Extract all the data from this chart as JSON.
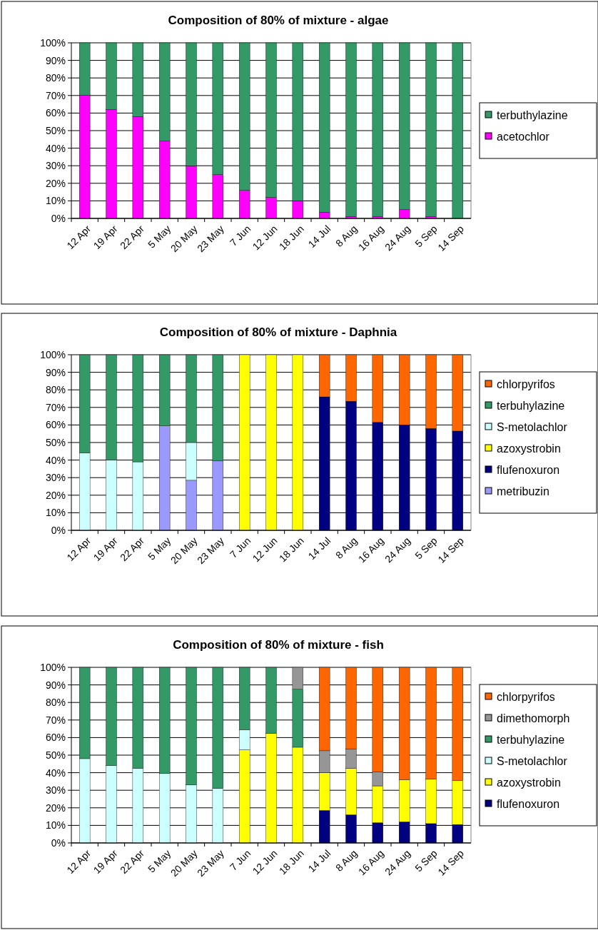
{
  "chart_data": [
    {
      "type": "bar",
      "stacked": true,
      "title": "Composition of 80% of mixture - algae",
      "categories": [
        "12 Apr",
        "19 Apr",
        "22 Apr",
        "5 May",
        "20 May",
        "23 May",
        "7 Jun",
        "12 Jun",
        "18 Jun",
        "14 Jul",
        "8 Aug",
        "16 Aug",
        "24 Aug",
        "5 Sep",
        "14 Sep"
      ],
      "ylim": [
        0,
        100
      ],
      "yticks": [
        {
          "value": 0,
          "label": "0%"
        },
        {
          "value": 10,
          "label": "10%"
        },
        {
          "value": 20,
          "label": "20%"
        },
        {
          "value": 30,
          "label": "30%"
        },
        {
          "value": 40,
          "label": "40%"
        },
        {
          "value": 50,
          "label": "50%"
        },
        {
          "value": 60,
          "label": "60%"
        },
        {
          "value": 70,
          "label": "70%"
        },
        {
          "value": 80,
          "label": "80%"
        },
        {
          "value": 90,
          "label": "90%"
        },
        {
          "value": 100,
          "label": "100%"
        }
      ],
      "grid": "y",
      "legend": "right",
      "series": [
        {
          "name": "acetochlor",
          "color": "#ff00ff",
          "values": [
            70,
            62,
            58,
            44,
            30,
            25,
            16,
            12,
            10,
            3.5,
            1,
            1,
            5,
            1,
            null
          ]
        },
        {
          "name": "terbuthylazine",
          "color": "#339966",
          "values": [
            30,
            38,
            42,
            56,
            70,
            75,
            84,
            88,
            90,
            96.5,
            99,
            99,
            95,
            99,
            100
          ]
        }
      ]
    },
    {
      "type": "bar",
      "stacked": true,
      "title": "Composition of 80% of mixture - Daphnia",
      "categories": [
        "12 Apr",
        "19 Apr",
        "22 Apr",
        "5 May",
        "20 May",
        "23 May",
        "7 Jun",
        "12 Jun",
        "18 Jun",
        "14 Jul",
        "8 Aug",
        "16 Aug",
        "24 Aug",
        "5 Sep",
        "14 Sep"
      ],
      "ylim": [
        0,
        100
      ],
      "yticks": [
        {
          "value": 0,
          "label": "0%"
        },
        {
          "value": 10,
          "label": "10%"
        },
        {
          "value": 20,
          "label": "20%"
        },
        {
          "value": 30,
          "label": "30%"
        },
        {
          "value": 40,
          "label": "40%"
        },
        {
          "value": 50,
          "label": "50%"
        },
        {
          "value": 60,
          "label": "60%"
        },
        {
          "value": 70,
          "label": "70%"
        },
        {
          "value": 80,
          "label": "80%"
        },
        {
          "value": 90,
          "label": "90%"
        },
        {
          "value": 100,
          "label": "100%"
        }
      ],
      "grid": "y",
      "legend": "right",
      "series": [
        {
          "name": "metribuzin",
          "color": "#9999ff",
          "values": [
            null,
            null,
            null,
            59.5,
            28.5,
            39.5,
            null,
            null,
            null,
            null,
            null,
            null,
            null,
            null,
            null
          ]
        },
        {
          "name": "flufenoxuron",
          "color": "#000080",
          "values": [
            null,
            null,
            null,
            null,
            null,
            null,
            null,
            null,
            null,
            76,
            73.5,
            61.5,
            60,
            58,
            56.5
          ]
        },
        {
          "name": "azoxystrobin",
          "color": "#ffff00",
          "values": [
            null,
            null,
            null,
            null,
            null,
            null,
            100,
            100,
            100,
            null,
            null,
            null,
            null,
            null,
            null
          ]
        },
        {
          "name": "S-metolachlor",
          "color": "#ccffff",
          "values": [
            44,
            40,
            39,
            null,
            21.5,
            null,
            null,
            null,
            null,
            null,
            null,
            null,
            null,
            null,
            null
          ]
        },
        {
          "name": "terbuhylazine",
          "color": "#339966",
          "values": [
            56,
            60,
            61,
            40.5,
            50,
            60.5,
            null,
            null,
            null,
            null,
            null,
            null,
            null,
            null,
            null
          ]
        },
        {
          "name": "chlorpyrifos",
          "color": "#ff6600",
          "values": [
            null,
            null,
            null,
            null,
            null,
            null,
            null,
            null,
            null,
            24,
            26.5,
            38.5,
            40,
            42,
            43.5
          ]
        }
      ]
    },
    {
      "type": "bar",
      "stacked": true,
      "title": "Composition of 80% of mixture - fish",
      "categories": [
        "12 Apr",
        "19 Apr",
        "22 Apr",
        "5 May",
        "20 May",
        "23 May",
        "7 Jun",
        "12 Jun",
        "18 Jun",
        "14 Jul",
        "8 Aug",
        "16 Aug",
        "24 Aug",
        "5 Sep",
        "14 Sep"
      ],
      "ylim": [
        0,
        100
      ],
      "yticks": [
        {
          "value": 0,
          "label": "0%"
        },
        {
          "value": 10,
          "label": "10%"
        },
        {
          "value": 20,
          "label": "20%"
        },
        {
          "value": 30,
          "label": "30%"
        },
        {
          "value": 40,
          "label": "40%"
        },
        {
          "value": 50,
          "label": "50%"
        },
        {
          "value": 60,
          "label": "60%"
        },
        {
          "value": 70,
          "label": "70%"
        },
        {
          "value": 80,
          "label": "80%"
        },
        {
          "value": 90,
          "label": "90%"
        },
        {
          "value": 100,
          "label": "100%"
        }
      ],
      "grid": "y",
      "legend": "right",
      "series": [
        {
          "name": "flufenoxuron",
          "color": "#000080",
          "values": [
            null,
            null,
            null,
            null,
            null,
            null,
            null,
            null,
            null,
            18.5,
            16,
            11.5,
            12,
            11,
            10.5
          ]
        },
        {
          "name": "azoxystrobin",
          "color": "#ffff00",
          "values": [
            null,
            null,
            null,
            null,
            null,
            null,
            53,
            62.5,
            54.5,
            21.5,
            26.5,
            21,
            24,
            25.5,
            25
          ]
        },
        {
          "name": "S-metolachlor",
          "color": "#ccffff",
          "values": [
            48,
            44,
            42.5,
            39.5,
            33,
            31,
            11.5,
            null,
            null,
            null,
            null,
            null,
            null,
            null,
            null
          ]
        },
        {
          "name": "terbuhylazine",
          "color": "#339966",
          "values": [
            52,
            56,
            57.5,
            60.5,
            67,
            69,
            35.5,
            37.5,
            33,
            null,
            null,
            null,
            null,
            null,
            null
          ]
        },
        {
          "name": "dimethomorph",
          "color": "#969696",
          "values": [
            null,
            null,
            null,
            null,
            null,
            null,
            null,
            null,
            12.5,
            12.5,
            11,
            8,
            null,
            null,
            null
          ]
        },
        {
          "name": "chlorpyrifos",
          "color": "#ff6600",
          "values": [
            null,
            null,
            null,
            null,
            null,
            null,
            null,
            null,
            null,
            47.5,
            46.5,
            59.5,
            64,
            63.5,
            64.5
          ]
        }
      ]
    }
  ]
}
